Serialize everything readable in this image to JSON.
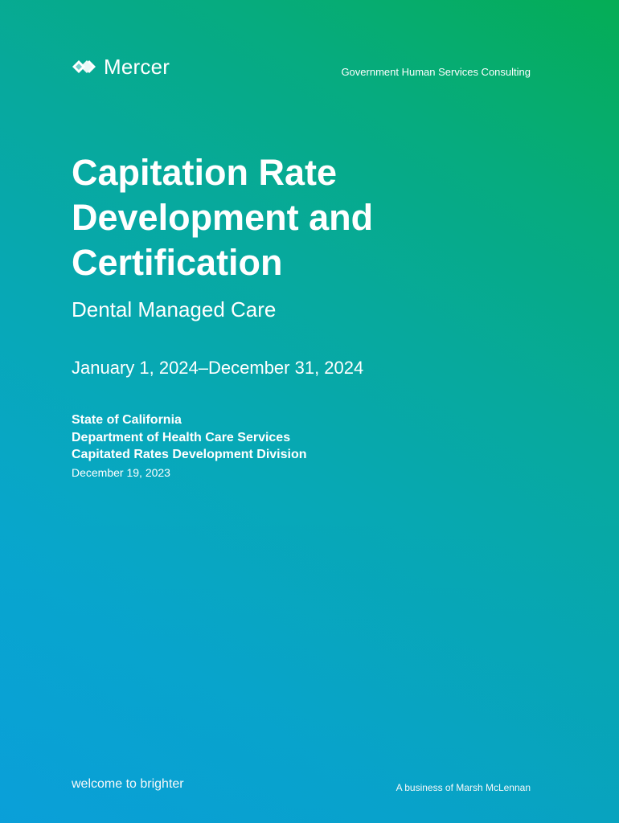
{
  "header": {
    "logo_text": "Mercer",
    "logo_icon": "mercer-logo-mark",
    "division": "Government Human Services Consulting"
  },
  "cover": {
    "title": "Capitation Rate Development and Certification",
    "subtitle": "Dental Managed Care",
    "period": "January 1, 2024–December 31, 2024",
    "organization": {
      "state": "State of California",
      "department": "Department of Health Care Services",
      "division": "Capitated Rates Development Division",
      "date": "December 19, 2023"
    }
  },
  "footer": {
    "tagline": "welcome to brighter",
    "business": "A business of Marsh McLennan"
  },
  "colors": {
    "gradient_start": "#0aa3de",
    "gradient_end": "#05ad55",
    "text": "#ffffff"
  }
}
